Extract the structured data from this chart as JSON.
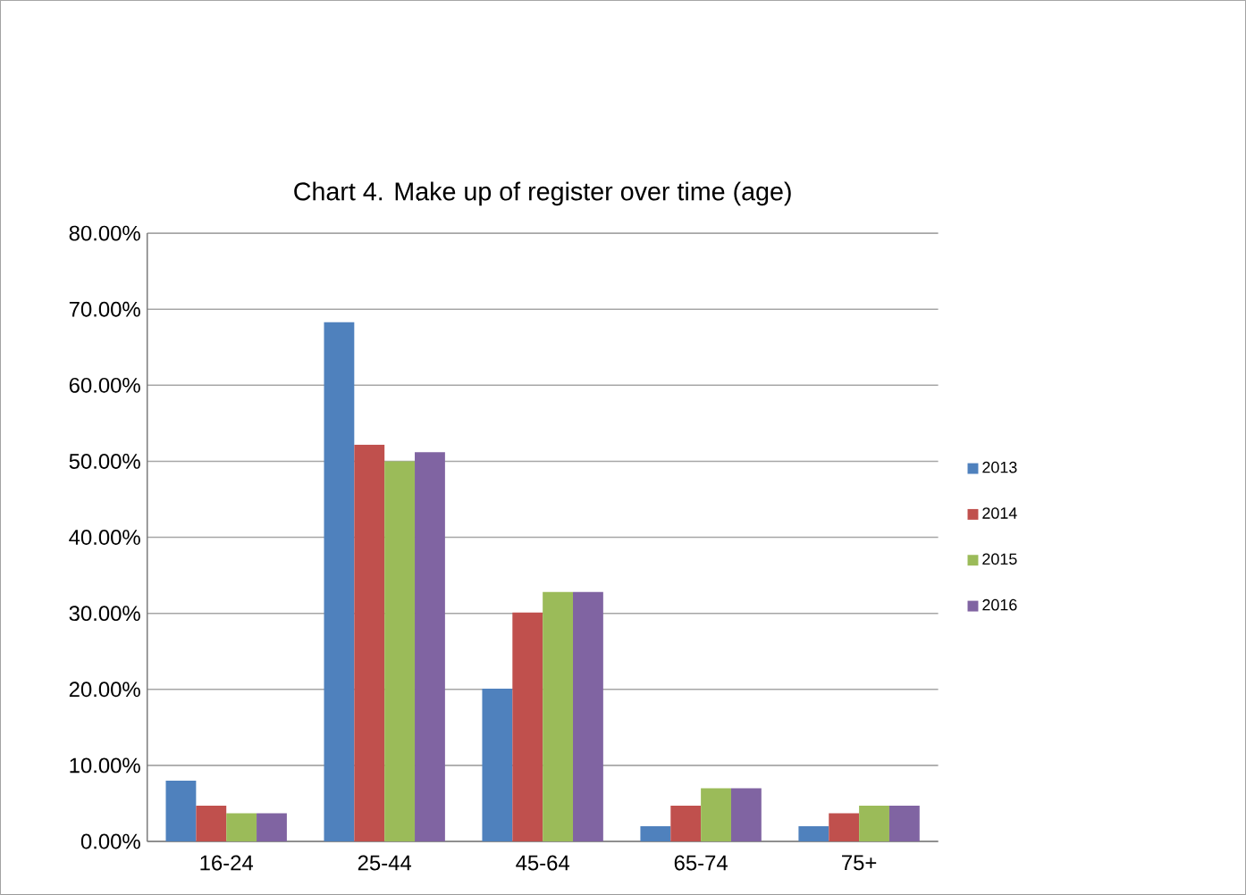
{
  "chart_data": {
    "type": "bar",
    "title": "Chart 4. Make  up of register over time (age)",
    "categories": [
      "16-24",
      "25-44",
      "45-64",
      "65-74",
      "75+"
    ],
    "series": [
      {
        "name": "2013",
        "color": "#4f81bd",
        "values": [
          8,
          68.3,
          20.1,
          2,
          2
        ]
      },
      {
        "name": "2014",
        "color": "#c0504d",
        "values": [
          4.7,
          52.2,
          30.1,
          4.7,
          3.7
        ]
      },
      {
        "name": "2015",
        "color": "#9bbb59",
        "values": [
          3.7,
          50,
          32.8,
          7,
          4.7
        ]
      },
      {
        "name": "2016",
        "color": "#8064a2",
        "values": [
          3.7,
          51.2,
          32.8,
          7,
          4.7
        ]
      }
    ],
    "ylim": [
      0,
      80
    ],
    "yticks": [
      {
        "value": 0,
        "label": "0.00%"
      },
      {
        "value": 10,
        "label": "10.00%"
      },
      {
        "value": 20,
        "label": "20.00%"
      },
      {
        "value": 30,
        "label": "30.00%"
      },
      {
        "value": 40,
        "label": "40.00%"
      },
      {
        "value": 50,
        "label": "50.00%"
      },
      {
        "value": 60,
        "label": "60.00%"
      },
      {
        "value": 70,
        "label": "70.00%"
      },
      {
        "value": 80,
        "label": "80.00%"
      }
    ],
    "grid": "y",
    "legend": "right"
  }
}
